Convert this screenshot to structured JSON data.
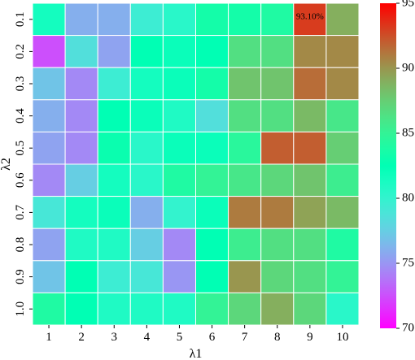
{
  "chart_data": {
    "type": "heatmap",
    "xlabel": "λ1",
    "ylabel": "λ2",
    "x_categories": [
      "1",
      "2",
      "3",
      "4",
      "5",
      "6",
      "7",
      "8",
      "9",
      "10"
    ],
    "y_categories": [
      "0.1",
      "0.2",
      "0.3",
      "0.4",
      "0.5",
      "0.6",
      "0.7",
      "0.8",
      "0.9",
      "1.0"
    ],
    "values": [
      [
        81.5,
        76.0,
        76.0,
        79.5,
        80.5,
        83.5,
        83.5,
        84.0,
        93.1,
        89.0
      ],
      [
        72.5,
        78.5,
        75.5,
        82.5,
        82.0,
        82.5,
        86.5,
        86.5,
        90.5,
        90.5
      ],
      [
        77.0,
        74.5,
        79.5,
        81.5,
        82.0,
        83.5,
        88.0,
        88.0,
        91.5,
        90.5
      ],
      [
        76.0,
        74.5,
        82.5,
        82.0,
        81.0,
        78.5,
        86.5,
        86.5,
        88.5,
        86.0
      ],
      [
        75.5,
        74.5,
        83.0,
        80.5,
        82.0,
        82.0,
        84.5,
        92.0,
        92.0,
        87.5
      ],
      [
        74.5,
        77.5,
        81.5,
        80.5,
        84.0,
        85.0,
        86.0,
        87.0,
        88.0,
        85.5
      ],
      [
        79.0,
        81.5,
        82.0,
        76.0,
        80.0,
        82.0,
        91.0,
        91.0,
        89.5,
        88.5
      ],
      [
        75.5,
        81.0,
        81.0,
        77.5,
        74.5,
        82.5,
        85.5,
        86.5,
        86.5,
        84.0
      ],
      [
        77.0,
        82.5,
        79.5,
        79.0,
        75.0,
        82.5,
        90.0,
        87.0,
        86.5,
        85.0
      ],
      [
        84.0,
        82.5,
        81.0,
        81.0,
        81.0,
        85.0,
        87.0,
        89.0,
        87.0,
        80.5
      ]
    ],
    "annotations": [
      {
        "row": 0,
        "col": 8,
        "text": "93.10%"
      }
    ],
    "colorbar": {
      "colormap": "rainbow",
      "min": 70,
      "max": 95,
      "ticks": [
        "70",
        "75",
        "80",
        "85",
        "90",
        "95"
      ]
    },
    "grid_line_color": "#ffffff"
  }
}
